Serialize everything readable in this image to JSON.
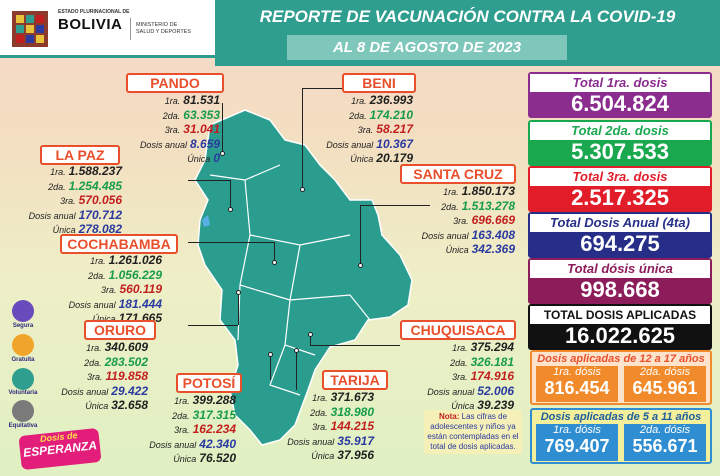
{
  "header": {
    "gov_small": "ESTADO PLURINACIONAL DE",
    "gov_big": "BOLIVIA",
    "ministry_line1": "MINISTERIO DE",
    "ministry_line2": "SALUD Y DEPORTES",
    "title": "REPORTE DE VACUNACIÓN CONTRA LA COVID-19",
    "date": "AL 8 DE AGOSTO  DE 2023"
  },
  "labels": {
    "d1": "1ra.",
    "d2": "2da.",
    "d3": "3ra.",
    "anual": "Dosis anual",
    "unica": "Única"
  },
  "departments": {
    "pando": {
      "name": "PANDO",
      "d1": "81.531",
      "d2": "63.353",
      "d3": "31.041",
      "anual": "8.659",
      "unica": "0"
    },
    "beni": {
      "name": "BENI",
      "d1": "236.993",
      "d2": "174.210",
      "d3": "58.217",
      "anual": "10.367",
      "unica": "20.179"
    },
    "lapaz": {
      "name": "LA PAZ",
      "d1": "1.588.237",
      "d2": "1.254.485",
      "d3": "570.056",
      "anual": "170.712",
      "unica": "278.082"
    },
    "santacruz": {
      "name": "SANTA CRUZ",
      "d1": "1.850.173",
      "d2": "1.513.278",
      "d3": "696.669",
      "anual": "163.408",
      "unica": "342.369"
    },
    "cochabamba": {
      "name": "COCHABAMBA",
      "d1": "1.261.026",
      "d2": "1.056.229",
      "d3": "560.119",
      "anual": "181.444",
      "unica": "171.665"
    },
    "oruro": {
      "name": "ORURO",
      "d1": "340.609",
      "d2": "283.502",
      "d3": "119.858",
      "anual": "29.422",
      "unica": "32.658"
    },
    "chuquisaca": {
      "name": "CHUQUISACA",
      "d1": "375.294",
      "d2": "326.181",
      "d3": "174.916",
      "anual": "52.006",
      "unica": "39.239"
    },
    "potosi": {
      "name": "POTOSÍ",
      "d1": "399.288",
      "d2": "317.315",
      "d3": "162.234",
      "anual": "42.340",
      "unica": "76.520"
    },
    "tarija": {
      "name": "TARIJA",
      "d1": "371.673",
      "d2": "318.980",
      "d3": "144.215",
      "anual": "35.917",
      "unica": "37.956"
    }
  },
  "totals": {
    "t1_label": "Total 1ra. dosis",
    "t1_value": "6.504.824",
    "t2_label": "Total 2da. dosis",
    "t2_value": "5.307.533",
    "t3_label": "Total 3ra. dosis",
    "t3_value": "2.517.325",
    "t4_label": "Total Dosis Anual (4ta)",
    "t4_value": "694.275",
    "t5_label": "Total dósis única",
    "t5_value": "998.668",
    "t6_label": "TOTAL DOSIS APLICADAS",
    "t6_value": "16.022.625"
  },
  "age_12_17": {
    "title": "Dosis aplicadas de 12 a 17 años",
    "l1": "1ra. dósis",
    "v1": "816.454",
    "l2": "2da. dósis",
    "v2": "645.961"
  },
  "age_5_11": {
    "title": "Dosis aplicadas de 5 a 11 años",
    "l1": "1ra. dósis",
    "v1": "769.407",
    "l2": "2da. dósis",
    "v2": "556.671"
  },
  "note": {
    "prefix": "Nota:",
    "text": "Las cifras de adolescentes y niños ya están contempladas en el total de dosis aplicadas."
  },
  "side": {
    "s1": "Segura",
    "s2": "Gratuita",
    "s3": "Voluntaria",
    "s4": "Equitativa",
    "logo_line1": "Dosis de",
    "logo_line2": "ESPERANZA"
  },
  "colors": {
    "teal": "#2f9e8f",
    "map": "#2a9d8f",
    "label_border": "#e94f2b"
  }
}
